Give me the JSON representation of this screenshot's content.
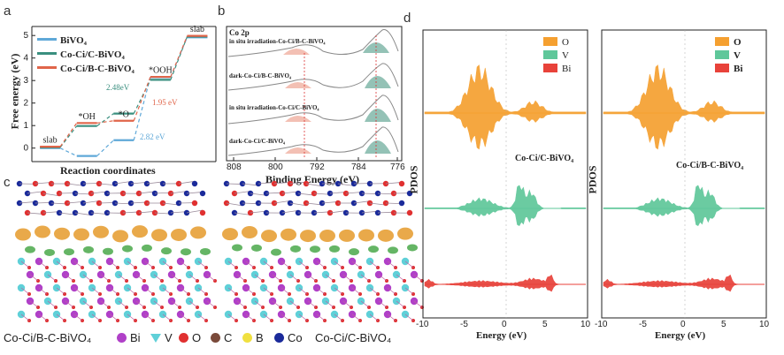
{
  "panels": {
    "a": {
      "letter": "a",
      "ylabel": "Free energy (eV)",
      "xlabel": "Reaction coordinates",
      "legend": [
        "BiVO₄",
        "Co-Ci/C-BiVO₄",
        "Co-Ci/B-C-BiVO₄"
      ],
      "series_colors": [
        "#5fa8d8",
        "#3a8f7f",
        "#e0654a"
      ],
      "step_labels": [
        "slab",
        "*OH",
        "*O",
        "*OOH",
        "slab"
      ],
      "annotations": [
        "2.48eV",
        "1.95 eV",
        "2.82 eV"
      ]
    },
    "b": {
      "letter": "b",
      "element": "Co 2p",
      "spectra": [
        "in situ irradiation-Co-Ci/B-C-BiVO₄",
        "dark-Co-Ci/B-C-BiVO₄",
        "in situ irradiation-Co-Ci/C-BiVO₄",
        "dark-Co-Ci/C-BiVO₄"
      ],
      "xlabel": "Binding Energy (eV)",
      "xticks": [
        "808",
        "800",
        "792",
        "784",
        "776"
      ]
    },
    "c": {
      "letter": "c",
      "left_label": "Co-Ci/B-C-BiVO₄",
      "right_label": "Co-Ci/C-BiVO₄",
      "atom_legend": [
        {
          "label": "Bi",
          "color": "#b040c8"
        },
        {
          "label": "V",
          "color": "#5fd0d8"
        },
        {
          "label": "O",
          "color": "#e03030"
        },
        {
          "label": "C",
          "color": "#7a4a3a"
        },
        {
          "label": "B",
          "color": "#f0e040"
        },
        {
          "label": "Co",
          "color": "#1a2a9a"
        }
      ]
    },
    "d": {
      "letter": "d",
      "ylabel": "PDOS",
      "xlabel": "Energy (eV)",
      "xticks": [
        "-10",
        "-5",
        "0",
        "5",
        "10"
      ],
      "left_title": "Co-Ci/C-BiVO₄",
      "right_title": "Co-Ci/B-C-BiVO₄",
      "legend": [
        {
          "label": "O",
          "color": "#f5a030"
        },
        {
          "label": "V",
          "color": "#5fc79a"
        },
        {
          "label": "Bi",
          "color": "#e8423a"
        }
      ]
    }
  },
  "chart_data": [
    {
      "type": "line",
      "title": "Free energy diagram",
      "xlabel": "Reaction coordinates",
      "ylabel": "Free energy (eV)",
      "categories": [
        "slab",
        "*OH",
        "*O",
        "*OOH",
        "slab"
      ],
      "ylim": [
        -0.6,
        5.4
      ],
      "yticks": [
        0,
        1,
        2,
        3,
        4,
        5
      ],
      "series": [
        {
          "name": "BiVO₄",
          "values": [
            0,
            -0.35,
            0.35,
            3.15,
            4.92
          ]
        },
        {
          "name": "Co-Ci/C-BiVO₄",
          "values": [
            0,
            0.95,
            1.5,
            3.0,
            4.92
          ]
        },
        {
          "name": "Co-Ci/B-C-BiVO₄",
          "values": [
            0,
            1.05,
            1.15,
            3.1,
            4.92
          ]
        }
      ]
    }
  ]
}
